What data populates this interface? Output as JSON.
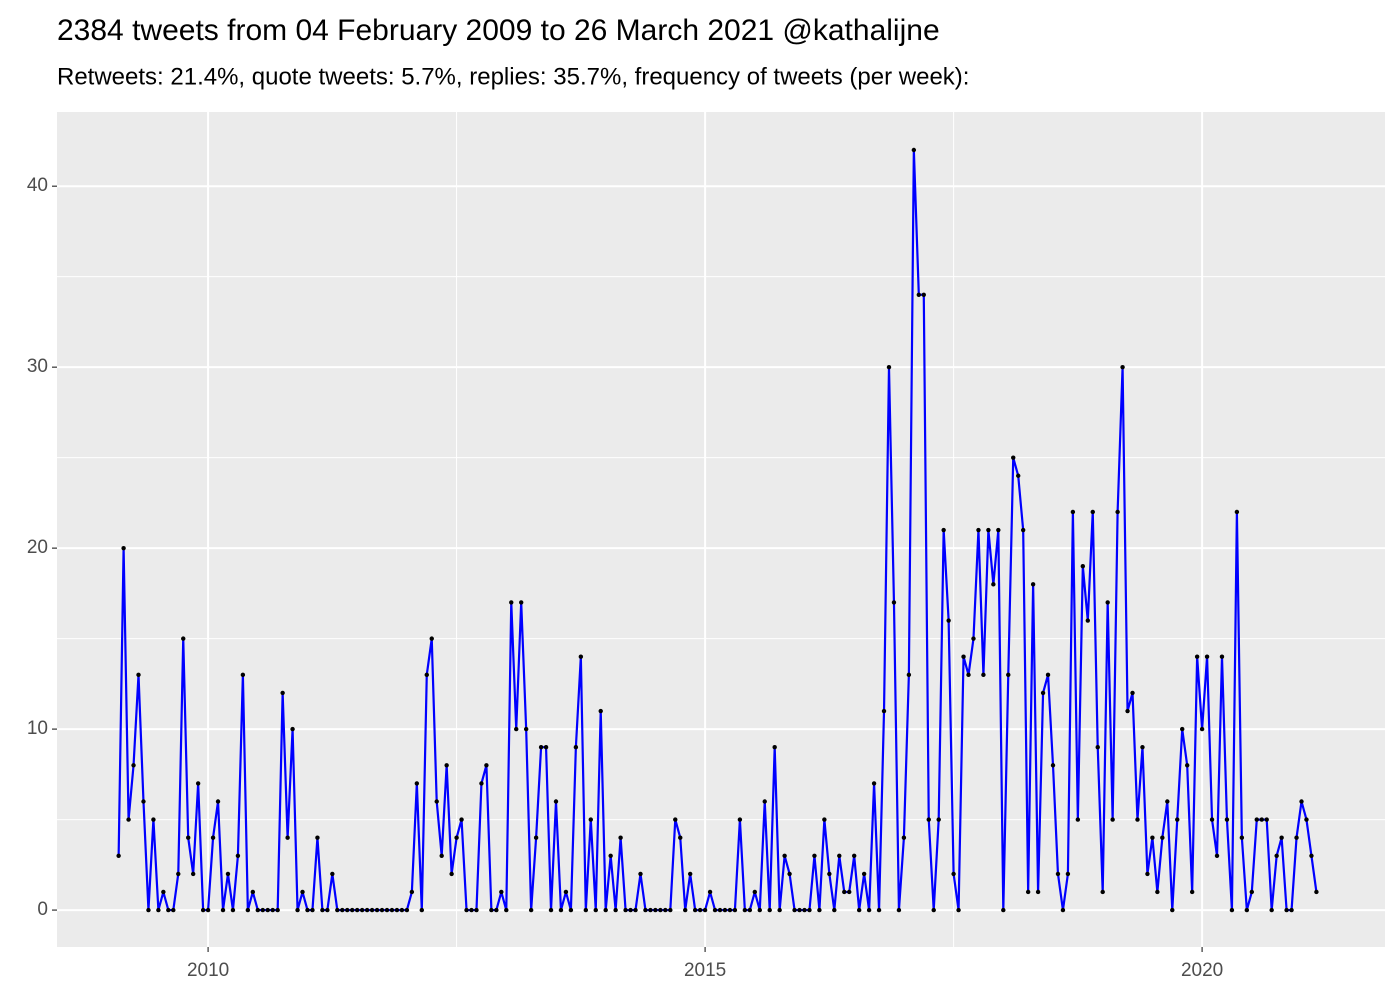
{
  "chart_data": {
    "type": "line",
    "title": "2384 tweets from 04 February 2009 to 26 March 2021 @kathalijne",
    "subtitle": "Retweets: 21.4%, quote tweets: 5.7%, replies: 35.7%, frequency of tweets (per week):",
    "x": [
      2009.1,
      2009.15,
      2009.2,
      2009.25,
      2009.3,
      2009.35,
      2009.4,
      2009.45,
      2009.5,
      2009.55,
      2009.6,
      2009.65,
      2009.7,
      2009.75,
      2009.8,
      2009.85,
      2009.9,
      2009.95,
      2010,
      2010.05,
      2010.1,
      2010.15,
      2010.2,
      2010.25,
      2010.3,
      2010.35,
      2010.4,
      2010.45,
      2010.5,
      2010.55,
      2010.6,
      2010.65,
      2010.7,
      2010.75,
      2010.8,
      2010.85,
      2010.9,
      2010.95,
      2011,
      2011.05,
      2011.1,
      2011.15,
      2011.2,
      2011.25,
      2011.3,
      2011.35,
      2011.4,
      2011.45,
      2011.5,
      2011.55,
      2011.6,
      2011.65,
      2011.7,
      2011.75,
      2011.8,
      2011.85,
      2011.9,
      2011.95,
      2012,
      2012.05,
      2012.1,
      2012.15,
      2012.2,
      2012.25,
      2012.3,
      2012.35,
      2012.4,
      2012.45,
      2012.5,
      2012.55,
      2012.6,
      2012.65,
      2012.7,
      2012.75,
      2012.8,
      2012.85,
      2012.9,
      2012.95,
      2013,
      2013.05,
      2013.1,
      2013.15,
      2013.2,
      2013.25,
      2013.3,
      2013.35,
      2013.4,
      2013.45,
      2013.5,
      2013.55,
      2013.6,
      2013.65,
      2013.7,
      2013.75,
      2013.8,
      2013.85,
      2013.9,
      2013.95,
      2014,
      2014.05,
      2014.1,
      2014.15,
      2014.2,
      2014.25,
      2014.3,
      2014.35,
      2014.4,
      2014.45,
      2014.5,
      2014.55,
      2014.6,
      2014.65,
      2014.7,
      2014.75,
      2014.8,
      2014.85,
      2014.9,
      2014.95,
      2015,
      2015.05,
      2015.1,
      2015.15,
      2015.2,
      2015.25,
      2015.3,
      2015.35,
      2015.4,
      2015.45,
      2015.5,
      2015.55,
      2015.6,
      2015.65,
      2015.7,
      2015.75,
      2015.8,
      2015.85,
      2015.9,
      2015.95,
      2016,
      2016.05,
      2016.1,
      2016.15,
      2016.2,
      2016.25,
      2016.3,
      2016.35,
      2016.4,
      2016.45,
      2016.5,
      2016.55,
      2016.6,
      2016.65,
      2016.7,
      2016.75,
      2016.8,
      2016.85,
      2016.9,
      2016.95,
      2017,
      2017.05,
      2017.1,
      2017.15,
      2017.2,
      2017.25,
      2017.3,
      2017.35,
      2017.4,
      2017.45,
      2017.5,
      2017.55,
      2017.6,
      2017.65,
      2017.7,
      2017.75,
      2017.8,
      2017.85,
      2017.9,
      2017.95,
      2018,
      2018.05,
      2018.1,
      2018.15,
      2018.2,
      2018.25,
      2018.3,
      2018.35,
      2018.4,
      2018.45,
      2018.5,
      2018.55,
      2018.6,
      2018.65,
      2018.7,
      2018.75,
      2018.8,
      2018.85,
      2018.9,
      2018.95,
      2019,
      2019.05,
      2019.1,
      2019.15,
      2019.2,
      2019.25,
      2019.3,
      2019.35,
      2019.4,
      2019.45,
      2019.5,
      2019.55,
      2019.6,
      2019.65,
      2019.7,
      2019.75,
      2019.8,
      2019.85,
      2019.9,
      2019.95,
      2020,
      2020.05,
      2020.1,
      2020.15,
      2020.2,
      2020.25,
      2020.3,
      2020.35,
      2020.4,
      2020.45,
      2020.5,
      2020.55,
      2020.6,
      2020.65,
      2020.7,
      2020.75,
      2020.8,
      2020.85,
      2020.9,
      2020.95,
      2021,
      2021.05,
      2021.1,
      2021.15
    ],
    "series": [
      {
        "color": "#0000ff",
        "values": [
          3,
          20,
          5,
          8,
          13,
          6,
          0,
          5,
          0,
          1,
          0,
          0,
          2,
          15,
          4,
          2,
          7,
          0,
          0,
          4,
          6,
          0,
          2,
          0,
          3,
          13,
          0,
          1,
          0,
          0,
          0,
          0,
          0,
          12,
          4,
          10,
          0,
          1,
          0,
          0,
          4,
          0,
          0,
          2,
          0,
          0,
          0,
          0,
          0,
          0,
          0,
          0,
          0,
          0,
          0,
          0,
          0,
          0,
          0,
          1,
          7,
          0,
          13,
          15,
          6,
          3,
          8,
          2,
          4,
          5,
          0,
          0,
          0,
          7,
          8,
          0,
          0,
          1,
          0,
          17,
          10,
          17,
          10,
          0,
          4,
          9,
          9,
          0,
          6,
          0,
          1,
          0,
          9,
          14,
          0,
          5,
          0,
          11,
          0,
          3,
          0,
          4,
          0,
          0,
          0,
          2,
          0,
          0,
          0,
          0,
          0,
          0,
          5,
          4,
          0,
          2,
          0,
          0,
          0,
          1,
          0,
          0,
          0,
          0,
          0,
          5,
          0,
          0,
          1,
          0,
          6,
          0,
          9,
          0,
          3,
          2,
          0,
          0,
          0,
          0,
          3,
          0,
          5,
          2,
          0,
          3,
          1,
          1,
          3,
          0,
          2,
          0,
          7,
          0,
          11,
          30,
          17,
          0,
          4,
          13,
          42,
          34,
          34,
          5,
          0,
          5,
          21,
          16,
          2,
          0,
          14,
          13,
          15,
          21,
          13,
          21,
          18,
          21,
          0,
          13,
          25,
          24,
          21,
          1,
          18,
          1,
          12,
          13,
          8,
          2,
          0,
          2,
          22,
          5,
          19,
          16,
          22,
          9,
          1,
          17,
          5,
          22,
          30,
          11,
          12,
          5,
          9,
          2,
          4,
          1,
          4,
          6,
          0,
          5,
          10,
          8,
          1,
          14,
          10,
          14,
          5,
          3,
          14,
          5,
          0,
          22,
          4,
          0,
          1,
          5,
          5,
          5,
          0,
          3,
          4,
          0,
          0,
          4,
          6,
          5,
          3,
          1
        ]
      }
    ],
    "xlim": [
      2008.48,
      2021.84
    ],
    "xticks": [
      2010,
      2015,
      2020
    ],
    "ylim": [
      -2.04,
      44.1
    ],
    "yticks": [
      0,
      10,
      20,
      30,
      40
    ],
    "grid": true,
    "point_color": "#000000"
  }
}
